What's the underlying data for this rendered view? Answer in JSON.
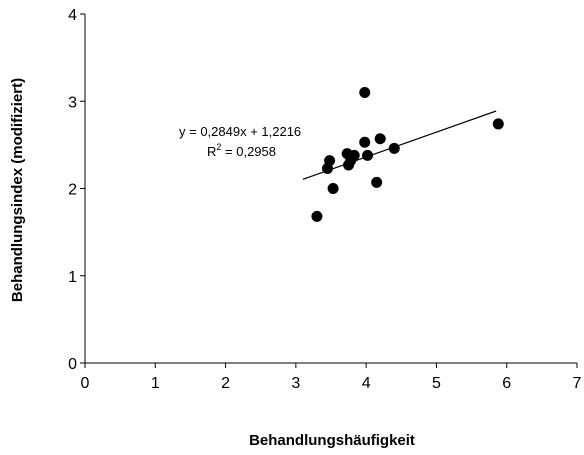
{
  "chart_data": {
    "type": "scatter",
    "xlabel": "Behandlungshäufigkeit",
    "ylabel": "Behandlungsindex (modifiziert)",
    "xlim": [
      0,
      7
    ],
    "ylim": [
      0,
      4
    ],
    "x_ticks": [
      "0",
      "1",
      "2",
      "3",
      "4",
      "5",
      "6",
      "7"
    ],
    "y_ticks": [
      "0",
      "1",
      "2",
      "3",
      "4"
    ],
    "grid": false,
    "series": [
      {
        "points": [
          {
            "x": 3.3,
            "y": 1.68
          },
          {
            "x": 3.45,
            "y": 2.23
          },
          {
            "x": 3.48,
            "y": 2.32
          },
          {
            "x": 3.53,
            "y": 2.0
          },
          {
            "x": 3.73,
            "y": 2.4
          },
          {
            "x": 3.75,
            "y": 2.27
          },
          {
            "x": 3.78,
            "y": 2.32
          },
          {
            "x": 3.83,
            "y": 2.38
          },
          {
            "x": 3.98,
            "y": 2.53
          },
          {
            "x": 3.98,
            "y": 3.1
          },
          {
            "x": 4.02,
            "y": 2.38
          },
          {
            "x": 4.15,
            "y": 2.07
          },
          {
            "x": 4.2,
            "y": 2.57
          },
          {
            "x": 4.4,
            "y": 2.46
          },
          {
            "x": 5.88,
            "y": 2.74
          }
        ]
      }
    ],
    "trendline": {
      "slope": 0.2849,
      "intercept": 1.2216,
      "x_start": 3.1,
      "x_end": 5.85,
      "equation_text": "y = 0,2849x + 1,2216",
      "r2_prefix": "R",
      "r2_exponent": "2",
      "r2_suffix": " = 0,2958"
    }
  }
}
